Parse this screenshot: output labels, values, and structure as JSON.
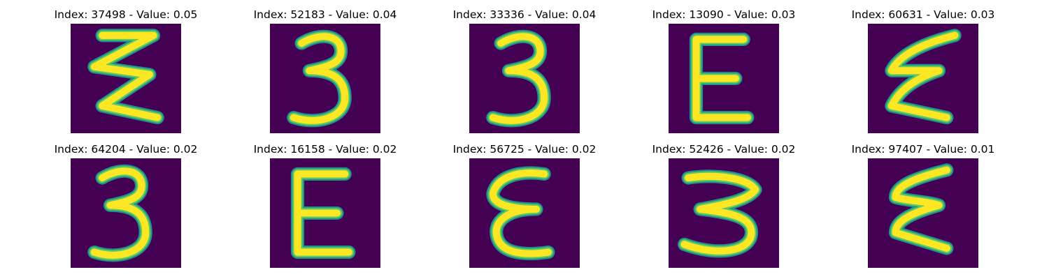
{
  "colors": {
    "background": "#440154",
    "stroke_edge": "#21918c",
    "stroke_mid": "#5ec962",
    "stroke_core": "#fde725"
  },
  "panels": [
    {
      "title": "Index: 37498 - Value: 0.05",
      "glyph": "zigzag-3"
    },
    {
      "title": "Index: 52183 - Value: 0.04",
      "glyph": "three"
    },
    {
      "title": "Index: 33336 - Value: 0.04",
      "glyph": "three"
    },
    {
      "title": "Index: 13090 - Value: 0.03",
      "glyph": "capital-e"
    },
    {
      "title": "Index: 60631 - Value: 0.03",
      "glyph": "slanted-e"
    },
    {
      "title": "Index: 64204 - Value: 0.02",
      "glyph": "three"
    },
    {
      "title": "Index: 16158 - Value: 0.02",
      "glyph": "capital-e"
    },
    {
      "title": "Index: 56725 - Value: 0.02",
      "glyph": "rounded-e"
    },
    {
      "title": "Index: 52426 - Value: 0.02",
      "glyph": "wide-three"
    },
    {
      "title": "Index: 97407 - Value: 0.01",
      "glyph": "zigzag-e"
    }
  ]
}
